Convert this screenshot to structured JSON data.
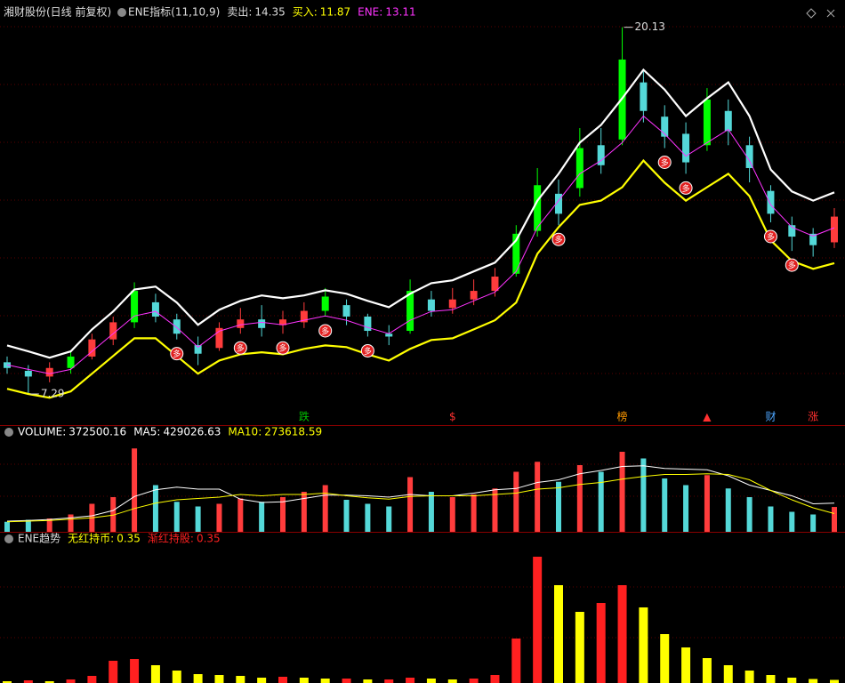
{
  "chart_data": [
    {
      "type": "candlestick",
      "title": "湘财股份(日线 前复权)",
      "indicator": "ENE指标(11,10,9)",
      "up_color": "#ff3c3c",
      "down_color": "#54d8d8",
      "breakout_color": "#00ff00",
      "open": [
        8.4,
        8.1,
        7.9,
        8.2,
        8.6,
        9.2,
        9.8,
        10.5,
        9.9,
        9.0,
        8.9,
        9.6,
        9.9,
        9.7,
        9.8,
        10.2,
        10.4,
        10.0,
        9.4,
        9.5,
        10.6,
        10.3,
        10.6,
        10.9,
        11.5,
        13.0,
        14.3,
        14.5,
        16.0,
        16.2,
        18.2,
        17.0,
        16.4,
        16.0,
        17.2,
        16.0,
        14.4,
        13.2,
        12.9,
        12.6
      ],
      "close": [
        8.2,
        7.9,
        8.2,
        8.6,
        9.2,
        9.8,
        10.9,
        10.0,
        9.4,
        8.7,
        9.6,
        9.9,
        9.6,
        9.9,
        10.2,
        10.7,
        10.0,
        9.5,
        9.3,
        10.9,
        10.2,
        10.6,
        10.9,
        11.4,
        12.9,
        14.6,
        13.6,
        15.9,
        15.3,
        19.0,
        17.2,
        16.3,
        15.4,
        17.6,
        16.5,
        15.2,
        13.6,
        12.8,
        12.5,
        13.5
      ],
      "high": [
        8.6,
        8.3,
        8.4,
        8.8,
        9.4,
        10.0,
        11.2,
        10.8,
        10.1,
        9.3,
        9.8,
        10.3,
        10.4,
        10.2,
        10.5,
        11.0,
        10.6,
        10.1,
        9.7,
        11.3,
        10.9,
        11.0,
        11.3,
        11.7,
        13.2,
        15.2,
        14.8,
        16.6,
        16.6,
        20.13,
        18.6,
        17.4,
        16.8,
        18.0,
        17.6,
        16.3,
        14.6,
        13.5,
        13.1,
        13.8
      ],
      "low": [
        8.0,
        7.29,
        7.7,
        8.0,
        8.5,
        9.0,
        9.6,
        9.8,
        9.2,
        8.3,
        8.8,
        9.4,
        9.3,
        9.4,
        9.6,
        10.0,
        9.7,
        9.3,
        9.0,
        9.4,
        10.0,
        10.1,
        10.4,
        10.7,
        11.4,
        12.8,
        13.2,
        14.2,
        15.0,
        16.0,
        16.8,
        15.9,
        15.0,
        15.8,
        16.0,
        14.7,
        13.3,
        12.3,
        12.1,
        12.4
      ],
      "series": [
        {
          "name": "卖出:",
          "color": "#ffffff",
          "readout": 14.35,
          "values": [
            8.99,
            8.78,
            8.56,
            8.78,
            9.55,
            10.18,
            10.95,
            11.05,
            10.49,
            9.71,
            10.24,
            10.55,
            10.74,
            10.64,
            10.74,
            10.92,
            10.8,
            10.55,
            10.33,
            10.8,
            11.17,
            11.27,
            11.58,
            11.89,
            12.67,
            14.06,
            15.0,
            16.09,
            16.71,
            17.64,
            18.64,
            17.95,
            17.02,
            17.64,
            18.2,
            17.02,
            15.15,
            14.38,
            14.06,
            14.35
          ]
        },
        {
          "name": "买入:",
          "color": "#ffff00",
          "readout": 11.87,
          "values": [
            7.47,
            7.29,
            7.16,
            7.38,
            8.0,
            8.62,
            9.24,
            9.24,
            8.62,
            8.0,
            8.46,
            8.68,
            8.75,
            8.68,
            8.87,
            8.99,
            8.93,
            8.68,
            8.46,
            8.87,
            9.18,
            9.24,
            9.55,
            9.87,
            10.49,
            12.2,
            13.13,
            13.91,
            14.06,
            14.53,
            15.46,
            14.69,
            14.06,
            14.53,
            15.0,
            14.22,
            12.67,
            11.95,
            11.67,
            11.87
          ]
        },
        {
          "name": "ENE:",
          "color": "#ff33ff",
          "readout": 13.11,
          "values": [
            8.31,
            8.15,
            8.0,
            8.15,
            8.78,
            9.4,
            10.02,
            10.18,
            9.62,
            8.93,
            9.49,
            9.71,
            9.8,
            9.71,
            9.87,
            10.02,
            9.87,
            9.62,
            9.4,
            9.87,
            10.18,
            10.24,
            10.55,
            10.86,
            11.58,
            13.13,
            14.06,
            15.0,
            15.46,
            16.09,
            17.02,
            16.4,
            15.62,
            16.09,
            16.55,
            15.46,
            13.91,
            13.13,
            12.82,
            13.11
          ]
        }
      ],
      "annotations": [
        20.13,
        7.29
      ],
      "signals": [
        null,
        null,
        null,
        null,
        null,
        null,
        null,
        null,
        "多",
        null,
        null,
        "多",
        null,
        "多",
        null,
        "多",
        null,
        "多",
        null,
        null,
        null,
        null,
        null,
        null,
        null,
        null,
        "多",
        null,
        null,
        null,
        null,
        "多",
        "多",
        null,
        null,
        null,
        "多",
        "多",
        null,
        null
      ],
      "events": [
        null,
        null,
        null,
        null,
        null,
        null,
        null,
        null,
        null,
        null,
        null,
        null,
        null,
        null,
        {
          "text": "跌",
          "color": "#00c000"
        },
        null,
        null,
        null,
        null,
        null,
        null,
        {
          "text": "$",
          "color": "#ff3030"
        },
        null,
        null,
        null,
        null,
        null,
        null,
        null,
        {
          "text": "榜",
          "color": "#ff9900"
        },
        null,
        null,
        null,
        {
          "text": "▲",
          "color": "#ff3030"
        },
        null,
        null,
        {
          "text": "财",
          "color": "#4da6ff"
        },
        null,
        {
          "text": "涨",
          "color": "#ff3030"
        },
        null
      ],
      "ylim": [
        6.2,
        20.4
      ]
    },
    {
      "type": "bar",
      "ylim": [
        0,
        1400000
      ],
      "series": [
        {
          "name": "VOLUME:",
          "color": "#ffffff",
          "readout": 372500.16,
          "values": [
            150000,
            180000,
            200000,
            260000,
            420000,
            520000,
            1250000,
            700000,
            450000,
            380000,
            420000,
            500000,
            450000,
            520000,
            600000,
            700000,
            480000,
            420000,
            380000,
            820000,
            600000,
            520000,
            560000,
            650000,
            900000,
            1050000,
            750000,
            1000000,
            900000,
            1200000,
            1100000,
            800000,
            700000,
            850000,
            650000,
            520000,
            380000,
            300000,
            260000,
            372500.16
          ]
        },
        {
          "name": "MA5:",
          "color": "#ffffff",
          "readout": 429026.63,
          "values": [
            160000,
            170000,
            185000,
            210000,
            240000,
            320000,
            530000,
            630000,
            670000,
            640000,
            640000,
            490000,
            440000,
            450000,
            500000,
            550000,
            550000,
            540000,
            520000,
            560000,
            540000,
            540000,
            580000,
            630000,
            650000,
            740000,
            780000,
            870000,
            920000,
            980000,
            990000,
            950000,
            940000,
            930000,
            840000,
            700000,
            620000,
            540000,
            420000,
            429026.63
          ]
        },
        {
          "name": "MA10:",
          "color": "#ffff00",
          "readout": 273618.59,
          "values": [
            150000,
            160000,
            170000,
            190000,
            210000,
            250000,
            350000,
            430000,
            480000,
            500000,
            520000,
            560000,
            540000,
            560000,
            560000,
            580000,
            540000,
            510000,
            490000,
            530000,
            540000,
            540000,
            540000,
            560000,
            580000,
            640000,
            660000,
            710000,
            740000,
            790000,
            830000,
            860000,
            860000,
            870000,
            860000,
            780000,
            620000,
            480000,
            360000,
            273618.59
          ]
        }
      ]
    },
    {
      "type": "bar",
      "title": "ENE趋势",
      "ylim": [
        0,
        15
      ],
      "series": [
        {
          "name": "无红持币:",
          "color": "#ffff00",
          "readout": 0.35
        },
        {
          "name": "渐红持股:",
          "color": "#ff2020",
          "readout": 0.35
        }
      ],
      "values": [
        0.2,
        0.3,
        0.2,
        0.4,
        0.8,
        2.5,
        2.7,
        2.0,
        1.4,
        1.0,
        0.9,
        0.8,
        0.6,
        0.7,
        0.6,
        0.5,
        0.5,
        0.4,
        0.4,
        0.6,
        0.5,
        0.4,
        0.5,
        0.9,
        5.0,
        14.2,
        11.0,
        8.0,
        9.0,
        11.0,
        8.5,
        5.5,
        4.0,
        2.8,
        2.0,
        1.4,
        0.9,
        0.6,
        0.45,
        0.35
      ]
    }
  ]
}
